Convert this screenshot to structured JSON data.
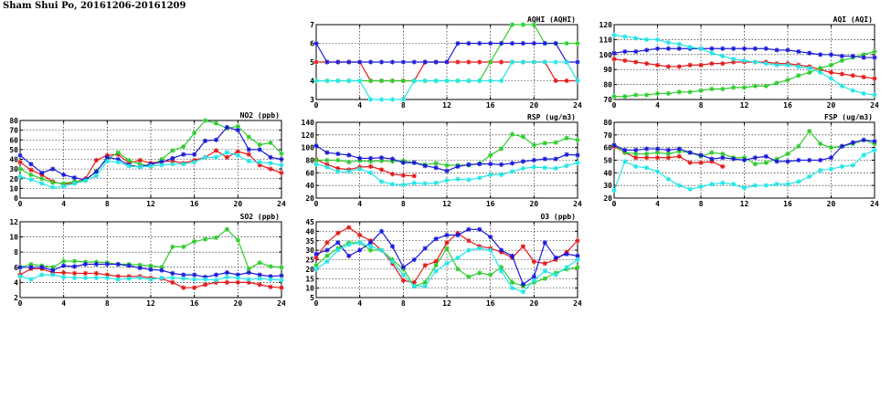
{
  "title": "Sham Shui Po, 20161206-20161209",
  "colors": {
    "red": "#e41a1c",
    "green": "#2ecc2e",
    "blue": "#1a1ad9",
    "cyan": "#22e6e6"
  },
  "chart_data": [
    {
      "id": "no2",
      "type": "line",
      "title": "NO2 (ppb)",
      "xlim": [
        0,
        24
      ],
      "xticks": [
        0,
        4,
        8,
        12,
        16,
        20,
        24
      ],
      "ylim": [
        0,
        80
      ],
      "yticks": [
        0,
        10,
        20,
        30,
        40,
        50,
        60,
        70,
        80
      ],
      "series": [
        {
          "color": "red",
          "values": [
            37,
            29,
            24,
            17,
            14,
            16,
            20,
            39,
            44,
            45,
            36,
            39,
            36,
            38,
            38,
            36,
            39,
            42,
            49,
            42,
            48,
            45,
            34,
            30,
            26
          ]
        },
        {
          "color": "green",
          "values": [
            30,
            24,
            20,
            16,
            15,
            17,
            18,
            28,
            40,
            47,
            39,
            35,
            33,
            40,
            49,
            53,
            67,
            80,
            77,
            72,
            74,
            63,
            55,
            57,
            46
          ]
        },
        {
          "color": "blue",
          "values": [
            44,
            35,
            26,
            30,
            24,
            21,
            19,
            27,
            42,
            40,
            34,
            32,
            35,
            37,
            41,
            45,
            45,
            59,
            60,
            73,
            70,
            50,
            50,
            42,
            40
          ]
        },
        {
          "color": "cyan",
          "values": [
            22,
            19,
            15,
            11,
            12,
            15,
            18,
            23,
            38,
            37,
            33,
            32,
            33,
            34,
            35,
            35,
            37,
            42,
            42,
            47,
            44,
            38,
            37,
            36,
            34
          ]
        }
      ]
    },
    {
      "id": "so2",
      "type": "line",
      "title": "SO2 (ppb)",
      "xlim": [
        0,
        24
      ],
      "xticks": [
        0,
        4,
        8,
        12,
        16,
        20,
        24
      ],
      "ylim": [
        2,
        12
      ],
      "yticks": [
        2,
        4,
        6,
        8,
        10,
        12
      ],
      "series": [
        {
          "color": "red",
          "values": [
            5.0,
            5.8,
            5.8,
            5.3,
            5.3,
            5.2,
            5.2,
            5.2,
            5.0,
            4.8,
            4.8,
            4.8,
            4.6,
            4.5,
            4.0,
            3.3,
            3.3,
            3.7,
            4.0,
            4.0,
            4.0,
            4.0,
            3.7,
            3.4,
            3.3
          ]
        },
        {
          "color": "green",
          "values": [
            6.0,
            6.4,
            6.2,
            6.0,
            6.8,
            6.8,
            6.7,
            6.7,
            6.6,
            6.4,
            6.4,
            6.3,
            6.2,
            6.0,
            8.7,
            8.7,
            9.4,
            9.7,
            9.9,
            11.0,
            9.6,
            5.8,
            6.6,
            6.1,
            6.0
          ]
        },
        {
          "color": "blue",
          "values": [
            6.0,
            6.0,
            6.0,
            5.6,
            6.2,
            6.1,
            6.4,
            6.4,
            6.4,
            6.4,
            6.2,
            5.9,
            5.7,
            5.6,
            5.2,
            5.0,
            5.0,
            4.7,
            5.0,
            5.3,
            5.0,
            5.3,
            5.0,
            4.8,
            4.9
          ]
        },
        {
          "color": "cyan",
          "values": [
            4.8,
            4.4,
            5.0,
            5.0,
            4.7,
            4.6,
            4.6,
            4.6,
            4.6,
            4.4,
            4.5,
            4.6,
            4.4,
            4.6,
            4.6,
            4.5,
            4.4,
            4.4,
            4.3,
            4.7,
            4.6,
            4.4,
            4.5,
            4.4,
            4.3
          ]
        }
      ]
    },
    {
      "id": "aqhi",
      "type": "line",
      "title": "AQHI (AQHI)",
      "xlim": [
        0,
        24
      ],
      "xticks": [
        0,
        4,
        8,
        12,
        16,
        20,
        24
      ],
      "ylim": [
        3,
        7
      ],
      "yticks": [
        3,
        4,
        5,
        6,
        7
      ],
      "series": [
        {
          "color": "red",
          "values": [
            5,
            5,
            5,
            5,
            5,
            4,
            4,
            4,
            4,
            4,
            5,
            5,
            5,
            5,
            5,
            5,
            5,
            5,
            5,
            5,
            5,
            5,
            4,
            4,
            4
          ]
        },
        {
          "color": "green",
          "values": [
            4,
            4,
            4,
            4,
            4,
            4,
            4,
            4,
            4,
            4,
            4,
            4,
            4,
            4,
            4,
            4,
            5,
            6,
            7,
            7,
            7,
            6,
            6,
            6,
            6
          ]
        },
        {
          "color": "blue",
          "values": [
            6,
            5,
            5,
            5,
            5,
            5,
            5,
            5,
            5,
            5,
            5,
            5,
            5,
            6,
            6,
            6,
            6,
            6,
            6,
            6,
            6,
            6,
            6,
            5,
            5
          ]
        },
        {
          "color": "cyan",
          "values": [
            4,
            4,
            4,
            4,
            4,
            3,
            3,
            3,
            3,
            4,
            4,
            4,
            4,
            4,
            4,
            4,
            4,
            4,
            5,
            5,
            5,
            5,
            5,
            5,
            4
          ]
        }
      ]
    },
    {
      "id": "rsp",
      "type": "line",
      "title": "RSP (ug/m3)",
      "xlim": [
        0,
        24
      ],
      "xticks": [
        0,
        4,
        8,
        12,
        16,
        20,
        24
      ],
      "ylim": [
        20,
        140
      ],
      "yticks": [
        20,
        40,
        60,
        80,
        100,
        120,
        140
      ],
      "series": [
        {
          "color": "red",
          "values": [
            81,
            73,
            67,
            65,
            69,
            70,
            65,
            58,
            56,
            55
          ]
        },
        {
          "color": "green",
          "values": [
            80,
            80,
            80,
            77,
            79,
            78,
            79,
            78,
            79,
            76,
            73,
            75,
            72,
            72,
            72,
            75,
            88,
            98,
            121,
            117,
            104,
            107,
            108,
            115,
            112
          ]
        },
        {
          "color": "blue",
          "values": [
            103,
            92,
            90,
            88,
            83,
            83,
            84,
            82,
            76,
            76,
            71,
            68,
            63,
            70,
            73,
            74,
            74,
            73,
            75,
            78,
            80,
            82,
            82,
            89,
            88
          ]
        },
        {
          "color": "cyan",
          "values": [
            74,
            69,
            62,
            62,
            66,
            60,
            46,
            42,
            41,
            44,
            43,
            44,
            48,
            50,
            49,
            52,
            57,
            57,
            62,
            67,
            69,
            68,
            67,
            71,
            76
          ]
        }
      ]
    },
    {
      "id": "o3",
      "type": "line",
      "title": "O3 (ppb)",
      "xlim": [
        0,
        24
      ],
      "xticks": [
        0,
        4,
        8,
        12,
        16,
        20,
        24
      ],
      "ylim": [
        5,
        45
      ],
      "yticks": [
        5,
        10,
        15,
        20,
        25,
        30,
        35,
        40,
        45
      ],
      "series": [
        {
          "color": "red",
          "values": [
            26,
            34,
            39,
            42,
            38,
            35,
            30,
            23,
            14,
            13,
            22,
            24,
            34,
            39,
            35,
            32,
            31,
            29,
            26,
            32,
            24,
            23,
            25,
            29,
            35
          ]
        },
        {
          "color": "green",
          "values": [
            22,
            27,
            31,
            34,
            34,
            30,
            30,
            25,
            20,
            11,
            13,
            22,
            31,
            20,
            16,
            18,
            17,
            21,
            13,
            11,
            13,
            15,
            18,
            20,
            21
          ]
        },
        {
          "color": "blue",
          "values": [
            28,
            30,
            34,
            27,
            30,
            34,
            40,
            32,
            21,
            25,
            31,
            36,
            38,
            38,
            41,
            41,
            37,
            30,
            27,
            12,
            16,
            34,
            26,
            28,
            27
          ]
        },
        {
          "color": "cyan",
          "values": [
            20,
            24,
            30,
            33,
            34,
            32,
            30,
            24,
            17,
            11,
            11,
            19,
            23,
            26,
            30,
            31,
            30,
            19,
            10,
            8,
            14,
            19,
            17,
            21,
            25
          ]
        }
      ]
    },
    {
      "id": "aqi",
      "type": "line",
      "title": "AQI (AQI)",
      "xlim": [
        0,
        24
      ],
      "xticks": [
        0,
        4,
        8,
        12,
        16,
        20,
        24
      ],
      "ylim": [
        70,
        120
      ],
      "yticks": [
        70,
        80,
        90,
        100,
        110,
        120
      ],
      "series": [
        {
          "color": "red",
          "values": [
            97,
            96,
            95,
            94,
            93,
            92,
            92,
            93,
            93,
            94,
            94,
            95,
            95,
            95,
            95,
            94,
            94,
            93,
            92,
            90,
            88,
            87,
            86,
            85,
            84
          ]
        },
        {
          "color": "green",
          "values": [
            72,
            72,
            73,
            73,
            74,
            74,
            75,
            75,
            76,
            77,
            77,
            78,
            78,
            79,
            79,
            81,
            83,
            86,
            88,
            91,
            93,
            96,
            98,
            100,
            102
          ]
        },
        {
          "color": "blue",
          "values": [
            101,
            102,
            102,
            103,
            104,
            104,
            104,
            104,
            104,
            104,
            104,
            104,
            104,
            104,
            104,
            103,
            103,
            102,
            101,
            100,
            100,
            99,
            99,
            98,
            98
          ]
        },
        {
          "color": "cyan",
          "values": [
            113,
            112,
            111,
            110,
            110,
            108,
            107,
            105,
            104,
            101,
            99,
            97,
            96,
            95,
            94,
            93,
            93,
            92,
            91,
            88,
            84,
            79,
            76,
            74,
            73
          ]
        }
      ]
    },
    {
      "id": "fsp",
      "type": "line",
      "title": "FSP (ug/m3)",
      "xlim": [
        0,
        24
      ],
      "xticks": [
        0,
        4,
        8,
        12,
        16,
        20,
        24
      ],
      "ylim": [
        20,
        80
      ],
      "yticks": [
        20,
        30,
        40,
        50,
        60,
        70,
        80
      ],
      "series": [
        {
          "color": "red",
          "values": [
            61,
            56,
            52,
            52,
            52,
            52,
            53,
            48,
            48,
            49,
            45
          ]
        },
        {
          "color": "green",
          "values": [
            62,
            56,
            55,
            55,
            56,
            55,
            57,
            56,
            53,
            56,
            55,
            52,
            52,
            47,
            48,
            51,
            55,
            61,
            73,
            63,
            60,
            61,
            63,
            66,
            63
          ]
        },
        {
          "color": "blue",
          "values": [
            62,
            58,
            58,
            59,
            59,
            58,
            59,
            56,
            54,
            51,
            52,
            51,
            50,
            52,
            53,
            49,
            49,
            50,
            50,
            50,
            52,
            61,
            64,
            66,
            65
          ]
        },
        {
          "color": "cyan",
          "values": [
            26,
            49,
            45,
            44,
            41,
            35,
            30,
            27,
            29,
            31,
            32,
            31,
            28,
            30,
            30,
            31,
            31,
            33,
            37,
            42,
            43,
            45,
            46,
            54,
            58
          ]
        }
      ]
    }
  ]
}
